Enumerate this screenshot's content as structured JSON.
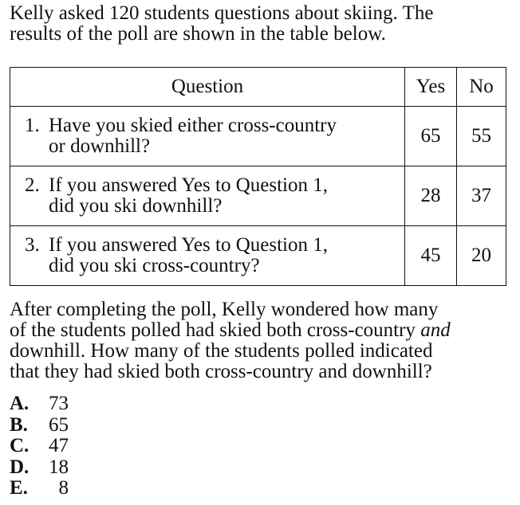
{
  "intro": {
    "line1": "Kelly asked 120 students questions about skiing. The",
    "line2": "results of the poll are shown in the table below."
  },
  "table": {
    "headers": {
      "question": "Question",
      "yes": "Yes",
      "no": "No"
    },
    "rows": [
      {
        "number": "1.",
        "line1": "Have you skied either cross-country",
        "line2": "or downhill?",
        "yes": "65",
        "no": "55"
      },
      {
        "number": "2.",
        "line1": "If you answered Yes to Question 1,",
        "line2": "did you ski downhill?",
        "yes": "28",
        "no": "37"
      },
      {
        "number": "3.",
        "line1": "If you answered Yes to Question 1,",
        "line2": "did you ski cross-country?",
        "yes": "45",
        "no": "20"
      }
    ]
  },
  "question": {
    "line1": "After completing the poll, Kelly wondered how many",
    "line2_pre": "of the students polled had skied both cross-country ",
    "line2_em": "and",
    "line3": "downhill. How many of the students polled indicated",
    "line4": "that they had skied both cross-country and downhill?"
  },
  "answers": [
    {
      "letter": "A.",
      "value": "73"
    },
    {
      "letter": "B.",
      "value": "65"
    },
    {
      "letter": "C.",
      "value": "47"
    },
    {
      "letter": "D.",
      "value": "18"
    },
    {
      "letter": "E.",
      "value": "8"
    }
  ]
}
